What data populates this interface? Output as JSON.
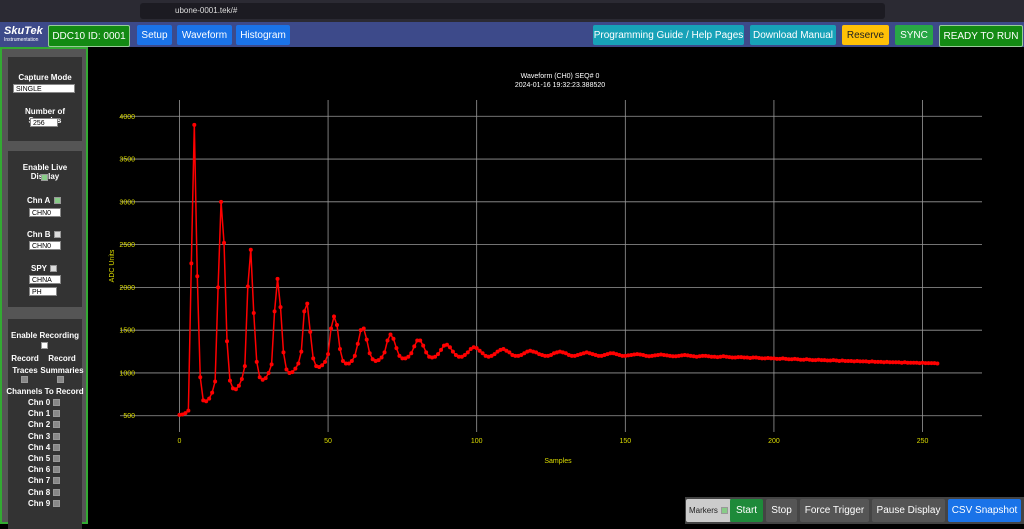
{
  "browser": {
    "url": "ubone-0001.tek/#"
  },
  "nav": {
    "logo": "SkuTek",
    "logo_sub": "Instrumentation",
    "device": "DDC10 ID: 0001",
    "tabs": [
      "Setup",
      "Waveform",
      "Histogram"
    ],
    "right_buttons": [
      "Programming Guide / Help Pages",
      "Download Manual",
      "Reserve",
      "SYNC",
      "READY TO RUN"
    ]
  },
  "sidebar": {
    "capture_mode_label": "Capture Mode",
    "capture_mode_value": "SINGLE",
    "samples_label": "Number of Samples",
    "samples_value": "256",
    "live_label": "Enable Live Display",
    "chn_a": "Chn A",
    "chn_a_value": "CHN0",
    "chn_b": "Chn B",
    "chn_b_value": "CHN0",
    "spy": "SPY",
    "spy_value": "CHNA",
    "spy_mode": "PH",
    "recording_label": "Enable Recording",
    "record_traces": "Record Traces",
    "record_summaries": "Record Summaries",
    "channels_label": "Channels To Record",
    "channels": [
      "Chn 0",
      "Chn 1",
      "Chn 2",
      "Chn 3",
      "Chn 4",
      "Chn 5",
      "Chn 6",
      "Chn 7",
      "Chn 8",
      "Chn 9"
    ]
  },
  "toolbar": {
    "markers": "Markers",
    "buttons": [
      "Start",
      "Stop",
      "Force Trigger",
      "Pause Display",
      "CSV Snapshot"
    ]
  },
  "chart_data": {
    "type": "line",
    "title": "Waveform (CH0) SEQ# 0",
    "subtitle": "2024-01-16 19:32:23.388520",
    "x_label": "Samples",
    "y_label": "ADC Units",
    "color": "#ff0000",
    "markers": true,
    "grid": true,
    "xlim": [
      -20,
      270
    ],
    "ylim": [
      310,
      4190
    ],
    "xticks": [
      0,
      50,
      100,
      150,
      200,
      250
    ],
    "yticks": [
      500,
      1000,
      1500,
      2000,
      2500,
      3000,
      3500,
      4000
    ],
    "x": [
      0,
      1,
      2,
      3,
      4,
      5,
      6,
      7,
      8,
      9,
      10,
      11,
      12,
      13,
      14,
      15,
      16,
      17,
      18,
      19,
      20,
      21,
      22,
      23,
      24,
      25,
      26,
      27,
      28,
      29,
      30,
      31,
      32,
      33,
      34,
      35,
      36,
      37,
      38,
      39,
      40,
      41,
      42,
      43,
      44,
      45,
      46,
      47,
      48,
      49,
      50,
      51,
      52,
      53,
      54,
      55,
      56,
      57,
      58,
      59,
      60,
      61,
      62,
      63,
      64,
      65,
      66,
      67,
      68,
      69,
      70,
      71,
      72,
      73,
      74,
      75,
      76,
      77,
      78,
      79,
      80,
      81,
      82,
      83,
      84,
      85,
      86,
      87,
      88,
      89,
      90,
      91,
      92,
      93,
      94,
      95,
      96,
      97,
      98,
      99,
      100,
      101,
      102,
      103,
      104,
      105,
      106,
      107,
      108,
      109,
      110,
      111,
      112,
      113,
      114,
      115,
      116,
      117,
      118,
      119,
      120,
      121,
      122,
      123,
      124,
      125,
      126,
      127,
      128,
      129,
      130,
      131,
      132,
      133,
      134,
      135,
      136,
      137,
      138,
      139,
      140,
      141,
      142,
      143,
      144,
      145,
      146,
      147,
      148,
      149,
      150,
      151,
      152,
      153,
      154,
      155,
      156,
      157,
      158,
      159,
      160,
      161,
      162,
      163,
      164,
      165,
      166,
      167,
      168,
      169,
      170,
      171,
      172,
      173,
      174,
      175,
      176,
      177,
      178,
      179,
      180,
      181,
      182,
      183,
      184,
      185,
      186,
      187,
      188,
      189,
      190,
      191,
      192,
      193,
      194,
      195,
      196,
      197,
      198,
      199,
      200,
      201,
      202,
      203,
      204,
      205,
      206,
      207,
      208,
      209,
      210,
      211,
      212,
      213,
      214,
      215,
      216,
      217,
      218,
      219,
      220,
      221,
      222,
      223,
      224,
      225,
      226,
      227,
      228,
      229,
      230,
      231,
      232,
      233,
      234,
      235,
      236,
      237,
      238,
      239,
      240,
      241,
      242,
      243,
      244,
      245,
      246,
      247,
      248,
      249,
      250,
      251,
      252,
      253,
      254,
      255
    ],
    "values": [
      510,
      515,
      530,
      560,
      2280,
      3900,
      2130,
      950,
      680,
      670,
      700,
      770,
      900,
      2000,
      3000,
      2520,
      1370,
      910,
      820,
      810,
      850,
      930,
      1080,
      2010,
      2440,
      1700,
      1130,
      950,
      920,
      940,
      1000,
      1100,
      1720,
      2100,
      1770,
      1240,
      1040,
      1000,
      1010,
      1050,
      1110,
      1250,
      1720,
      1810,
      1480,
      1170,
      1080,
      1070,
      1090,
      1130,
      1220,
      1520,
      1660,
      1560,
      1280,
      1140,
      1110,
      1110,
      1140,
      1200,
      1340,
      1500,
      1520,
      1390,
      1230,
      1160,
      1140,
      1150,
      1180,
      1240,
      1380,
      1450,
      1400,
      1290,
      1200,
      1170,
      1170,
      1190,
      1230,
      1310,
      1380,
      1380,
      1320,
      1240,
      1190,
      1180,
      1190,
      1220,
      1270,
      1320,
      1330,
      1300,
      1250,
      1210,
      1190,
      1190,
      1210,
      1240,
      1280,
      1300,
      1290,
      1260,
      1230,
      1200,
      1190,
      1200,
      1220,
      1250,
      1270,
      1280,
      1260,
      1240,
      1210,
      1200,
      1200,
      1210,
      1230,
      1250,
      1260,
      1250,
      1240,
      1220,
      1210,
      1200,
      1200,
      1210,
      1230,
      1240,
      1250,
      1240,
      1230,
      1210,
      1200,
      1200,
      1210,
      1220,
      1230,
      1240,
      1230,
      1220,
      1210,
      1200,
      1200,
      1210,
      1220,
      1230,
      1230,
      1220,
      1210,
      1200,
      1200,
      1205,
      1210,
      1215,
      1220,
      1215,
      1210,
      1200,
      1195,
      1200,
      1205,
      1210,
      1215,
      1210,
      1205,
      1200,
      1195,
      1195,
      1200,
      1205,
      1210,
      1205,
      1200,
      1195,
      1190,
      1195,
      1200,
      1200,
      1195,
      1190,
      1190,
      1185,
      1190,
      1195,
      1190,
      1185,
      1180,
      1180,
      1185,
      1185,
      1180,
      1180,
      1175,
      1180,
      1180,
      1175,
      1170,
      1170,
      1175,
      1170,
      1170,
      1165,
      1165,
      1170,
      1165,
      1160,
      1160,
      1165,
      1160,
      1155,
      1155,
      1160,
      1155,
      1150,
      1150,
      1155,
      1150,
      1150,
      1145,
      1145,
      1150,
      1145,
      1140,
      1145,
      1140,
      1140,
      1140,
      1135,
      1140,
      1135,
      1135,
      1135,
      1130,
      1135,
      1130,
      1130,
      1130,
      1125,
      1130,
      1125,
      1125,
      1125,
      1125,
      1120,
      1125,
      1120,
      1120,
      1120,
      1120,
      1115,
      1120,
      1115,
      1115,
      1115,
      1115,
      1110
    ]
  }
}
